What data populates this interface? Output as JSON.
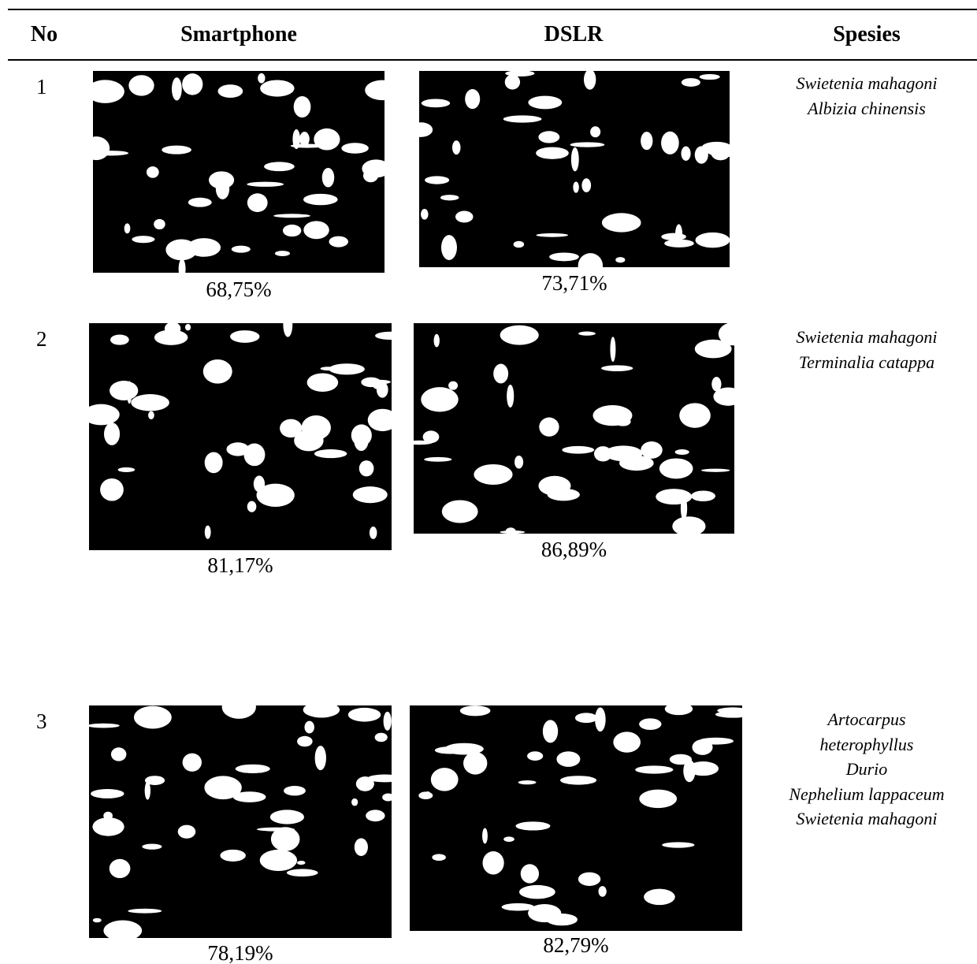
{
  "header": {
    "columns": [
      "No",
      "Smartphone",
      "DSLR",
      "Spesies"
    ]
  },
  "rows": [
    {
      "no": "1",
      "smartphone": "68,75%",
      "dslr": "73,71%",
      "species": [
        "Swietenia mahagoni",
        "Albizia chinensis"
      ]
    },
    {
      "no": "2",
      "smartphone": "81,17%",
      "dslr": "86,89%",
      "species": [
        "Swietenia mahagoni",
        "Terminalia catappa"
      ]
    },
    {
      "no": "3",
      "smartphone": "78,19%",
      "dslr": "82,79%",
      "species": [
        "Artocarpus",
        "heterophyllus",
        "Durio",
        "Nephelium lappaceum",
        "Swietenia mahagoni"
      ]
    }
  ]
}
